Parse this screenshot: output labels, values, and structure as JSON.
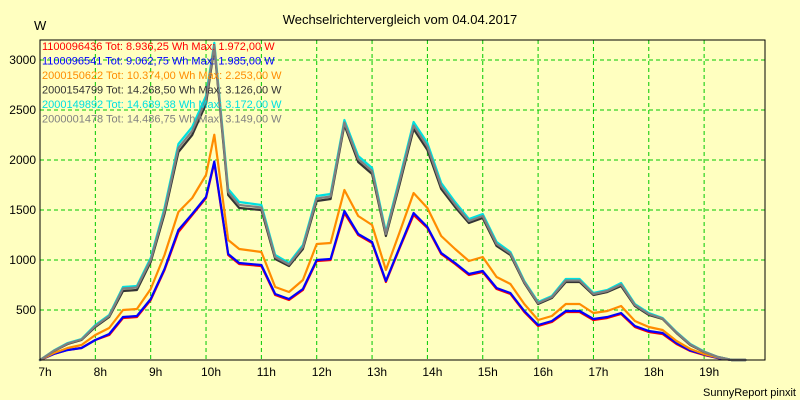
{
  "chart_data": {
    "type": "line",
    "title": "Wechselrichtervergleich vom 04.04.2017",
    "ylabel": "W",
    "xlabel": "",
    "footer": "SunnyReport pinxit",
    "ylim": [
      0,
      3200
    ],
    "yticks": [
      500,
      1000,
      1500,
      2000,
      2500,
      3000
    ],
    "xlim": [
      7,
      20.1
    ],
    "xticks": [
      {
        "value": 7,
        "label": "7h"
      },
      {
        "value": 8,
        "label": "8h"
      },
      {
        "value": 9,
        "label": "9h"
      },
      {
        "value": 10,
        "label": "10h"
      },
      {
        "value": 11,
        "label": "11h"
      },
      {
        "value": 12,
        "label": "12h"
      },
      {
        "value": 13,
        "label": "13h"
      },
      {
        "value": 14,
        "label": "14h"
      },
      {
        "value": 15,
        "label": "15h"
      },
      {
        "value": 16,
        "label": "16h"
      },
      {
        "value": 17,
        "label": "17h"
      },
      {
        "value": 18,
        "label": "18h"
      },
      {
        "value": 19,
        "label": "19h"
      }
    ],
    "grid": true,
    "legend_position": "top-left",
    "x": [
      7.0,
      7.25,
      7.5,
      7.75,
      8.0,
      8.25,
      8.5,
      8.75,
      9.0,
      9.25,
      9.5,
      9.75,
      10.0,
      10.15,
      10.4,
      10.6,
      11.0,
      11.25,
      11.5,
      11.75,
      12.0,
      12.25,
      12.5,
      12.75,
      13.0,
      13.25,
      13.5,
      13.75,
      14.0,
      14.25,
      14.5,
      14.75,
      15.0,
      15.25,
      15.5,
      15.75,
      16.0,
      16.25,
      16.5,
      16.75,
      17.0,
      17.25,
      17.5,
      17.75,
      18.0,
      18.25,
      18.5,
      18.75,
      19.0,
      19.25,
      19.5,
      19.75
    ],
    "series": [
      {
        "name": "1100096436",
        "legend": "1100096436 Tot: 8.936,25 Wh Max: 1.972,00 W",
        "color": "#ff0000",
        "values": [
          0,
          60,
          100,
          120,
          200,
          250,
          420,
          430,
          600,
          900,
          1280,
          1450,
          1620,
          1972,
          1050,
          960,
          940,
          650,
          600,
          700,
          990,
          1000,
          1470,
          1250,
          1170,
          780,
          1120,
          1450,
          1320,
          1060,
          960,
          850,
          880,
          710,
          660,
          480,
          340,
          380,
          480,
          480,
          400,
          420,
          460,
          330,
          280,
          260,
          160,
          90,
          50,
          20,
          0,
          0
        ]
      },
      {
        "name": "1100096541",
        "legend": "1100096541 Tot: 9.062,75 Wh Max: 1.985,00 W",
        "color": "#0000ff",
        "values": [
          0,
          60,
          100,
          120,
          200,
          260,
          430,
          440,
          610,
          910,
          1300,
          1460,
          1630,
          1985,
          1060,
          970,
          950,
          660,
          610,
          710,
          1000,
          1010,
          1490,
          1260,
          1180,
          790,
          1130,
          1470,
          1330,
          1070,
          970,
          860,
          890,
          720,
          670,
          490,
          350,
          390,
          490,
          490,
          410,
          430,
          470,
          340,
          290,
          270,
          170,
          95,
          55,
          20,
          0,
          0
        ]
      },
      {
        "name": "2000150622",
        "legend": "2000150622 Tot: 10.374,00 Wh Max: 2.253,00 W",
        "color": "#ff8c00",
        "values": [
          0,
          70,
          120,
          150,
          250,
          320,
          500,
          510,
          710,
          1050,
          1480,
          1620,
          1850,
          2253,
          1200,
          1110,
          1080,
          730,
          680,
          800,
          1160,
          1170,
          1700,
          1440,
          1350,
          900,
          1280,
          1670,
          1520,
          1240,
          1110,
          990,
          1030,
          830,
          760,
          560,
          400,
          440,
          560,
          560,
          470,
          490,
          540,
          390,
          330,
          300,
          190,
          110,
          60,
          25,
          0,
          0
        ]
      },
      {
        "name": "2000154799",
        "legend": "2000154799 Tot: 14.268,50 Wh Max: 3.126,00 W",
        "color": "#333333",
        "values": [
          0,
          90,
          160,
          200,
          330,
          430,
          690,
          700,
          980,
          1460,
          2080,
          2250,
          2560,
          3126,
          1650,
          1520,
          1500,
          1010,
          940,
          1110,
          1590,
          1610,
          2350,
          1980,
          1860,
          1240,
          1760,
          2310,
          2100,
          1710,
          1530,
          1370,
          1420,
          1140,
          1050,
          770,
          560,
          620,
          780,
          780,
          650,
          680,
          740,
          540,
          450,
          410,
          270,
          150,
          80,
          30,
          0,
          0
        ]
      },
      {
        "name": "2000149892",
        "legend": "2000149892 Tot: 14.689,38 Wh Max: 3.172,00 W",
        "color": "#00e0e0",
        "values": [
          0,
          95,
          170,
          210,
          350,
          450,
          730,
          740,
          1020,
          1520,
          2160,
          2330,
          2640,
          3172,
          1710,
          1580,
          1550,
          1050,
          970,
          1150,
          1640,
          1660,
          2400,
          2040,
          1920,
          1280,
          1820,
          2380,
          2170,
          1770,
          1580,
          1410,
          1460,
          1180,
          1080,
          790,
          580,
          640,
          810,
          810,
          670,
          700,
          770,
          560,
          470,
          420,
          280,
          160,
          85,
          30,
          0,
          0
        ]
      },
      {
        "name": "2000001478",
        "legend": "2000001478 Tot: 14.486,75 Wh Max: 3.149,00 W",
        "color": "#808080",
        "values": [
          0,
          92,
          165,
          205,
          340,
          440,
          715,
          725,
          1000,
          1490,
          2120,
          2290,
          2600,
          3149,
          1680,
          1550,
          1525,
          1030,
          955,
          1130,
          1615,
          1635,
          2375,
          2010,
          1890,
          1260,
          1790,
          2345,
          2135,
          1740,
          1555,
          1390,
          1440,
          1160,
          1065,
          780,
          570,
          630,
          795,
          795,
          660,
          690,
          755,
          550,
          460,
          415,
          275,
          155,
          82,
          30,
          0,
          0
        ]
      }
    ]
  }
}
